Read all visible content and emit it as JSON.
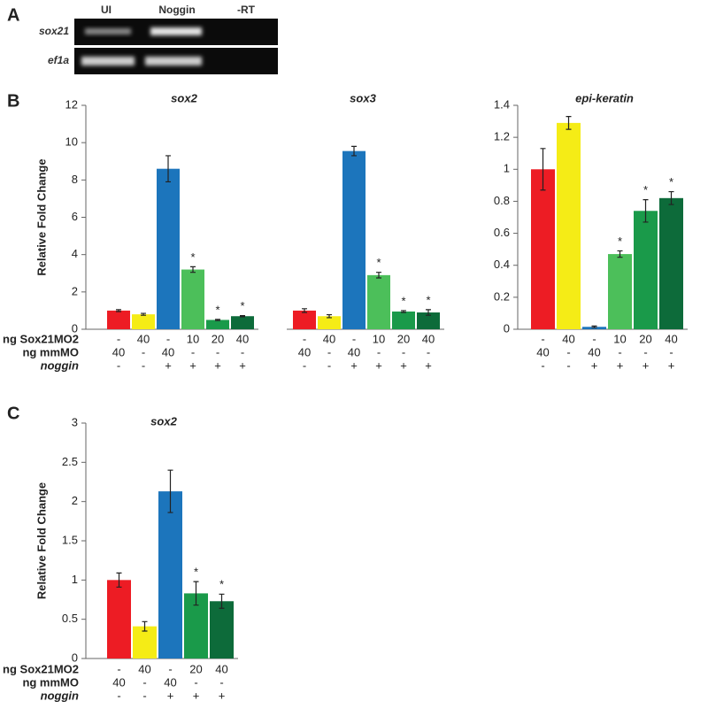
{
  "panel_labels": [
    "A",
    "B",
    "C"
  ],
  "gel": {
    "columns": [
      "UI",
      "Noggin",
      "-RT"
    ],
    "rows": [
      "sox21",
      "ef1a"
    ]
  },
  "chart_data": [
    {
      "type": "bar",
      "title": "sox2",
      "y_label": "Relative Fold Change",
      "values": [
        1.0,
        0.8,
        8.6,
        3.2,
        0.5,
        0.7
      ],
      "errors": [
        0.05,
        0.05,
        0.7,
        0.15,
        0.03,
        0.03
      ],
      "colors": [
        "#ed1c24",
        "#f5ec16",
        "#1c75bc",
        "#4cbf5a",
        "#1a9a4a",
        "#0d6b3a"
      ],
      "markers": [
        null,
        null,
        null,
        "*",
        "*",
        "*"
      ],
      "ylim": [
        0,
        12
      ],
      "yticks": [
        0,
        2,
        4,
        6,
        8,
        10,
        12
      ],
      "conditions": [
        {
          "label": "ng Sox21MO2",
          "values": [
            "-",
            "40",
            "-",
            "10",
            "20",
            "40"
          ]
        },
        {
          "label": "ng mmMO",
          "values": [
            "40",
            "-",
            "40",
            "-",
            "-",
            "-"
          ]
        },
        {
          "label": "noggin",
          "values": [
            "-",
            "-",
            "+",
            "+",
            "+",
            "+"
          ]
        }
      ]
    },
    {
      "type": "bar",
      "title": "sox3",
      "values": [
        1.0,
        0.7,
        9.55,
        2.9,
        0.95,
        0.9
      ],
      "errors": [
        0.1,
        0.08,
        0.25,
        0.15,
        0.05,
        0.15
      ],
      "colors": [
        "#ed1c24",
        "#f5ec16",
        "#1c75bc",
        "#4cbf5a",
        "#1a9a4a",
        "#0d6b3a"
      ],
      "markers": [
        null,
        null,
        null,
        "*",
        "*",
        "*"
      ],
      "ylim": [
        0,
        12
      ],
      "conditions": [
        {
          "values": [
            "-",
            "40",
            "-",
            "10",
            "20",
            "40"
          ]
        },
        {
          "values": [
            "40",
            "-",
            "40",
            "-",
            "-",
            "-"
          ]
        },
        {
          "values": [
            "-",
            "-",
            "+",
            "+",
            "+",
            "+"
          ]
        }
      ]
    },
    {
      "type": "bar",
      "title": "epi-keratin",
      "values": [
        1.0,
        1.29,
        0.015,
        0.47,
        0.74,
        0.82
      ],
      "errors": [
        0.13,
        0.04,
        0.005,
        0.02,
        0.07,
        0.04
      ],
      "colors": [
        "#ed1c24",
        "#f5ec16",
        "#1c75bc",
        "#4cbf5a",
        "#1a9a4a",
        "#0d6b3a"
      ],
      "markers": [
        null,
        null,
        null,
        "*",
        "*",
        "*"
      ],
      "ylim": [
        0,
        1.4
      ],
      "yticks": [
        0,
        0.2,
        0.4,
        0.6,
        0.8,
        1,
        1.2,
        1.4
      ],
      "conditions": [
        {
          "values": [
            "-",
            "40",
            "-",
            "10",
            "20",
            "40"
          ]
        },
        {
          "values": [
            "40",
            "-",
            "40",
            "-",
            "-",
            "-"
          ]
        },
        {
          "values": [
            "-",
            "-",
            "+",
            "+",
            "+",
            "+"
          ]
        }
      ]
    },
    {
      "type": "bar",
      "title": "sox2",
      "y_label": "Relative Fold Change",
      "values": [
        1.0,
        0.41,
        2.13,
        0.83,
        0.73
      ],
      "errors": [
        0.09,
        0.06,
        0.27,
        0.15,
        0.09
      ],
      "colors": [
        "#ed1c24",
        "#f5ec16",
        "#1c75bc",
        "#1a9a4a",
        "#0d6b3a"
      ],
      "markers": [
        null,
        null,
        null,
        "*",
        "*"
      ],
      "ylim": [
        0,
        3
      ],
      "yticks": [
        0,
        0.5,
        1,
        1.5,
        2,
        2.5,
        3
      ],
      "conditions": [
        {
          "label": "ng Sox21MO2",
          "values": [
            "-",
            "40",
            "-",
            "20",
            "40"
          ]
        },
        {
          "label": "ng mmMO",
          "values": [
            "40",
            "-",
            "40",
            "-",
            "-"
          ]
        },
        {
          "label": "noggin",
          "values": [
            "-",
            "-",
            "+",
            "+",
            "+"
          ]
        }
      ]
    }
  ]
}
